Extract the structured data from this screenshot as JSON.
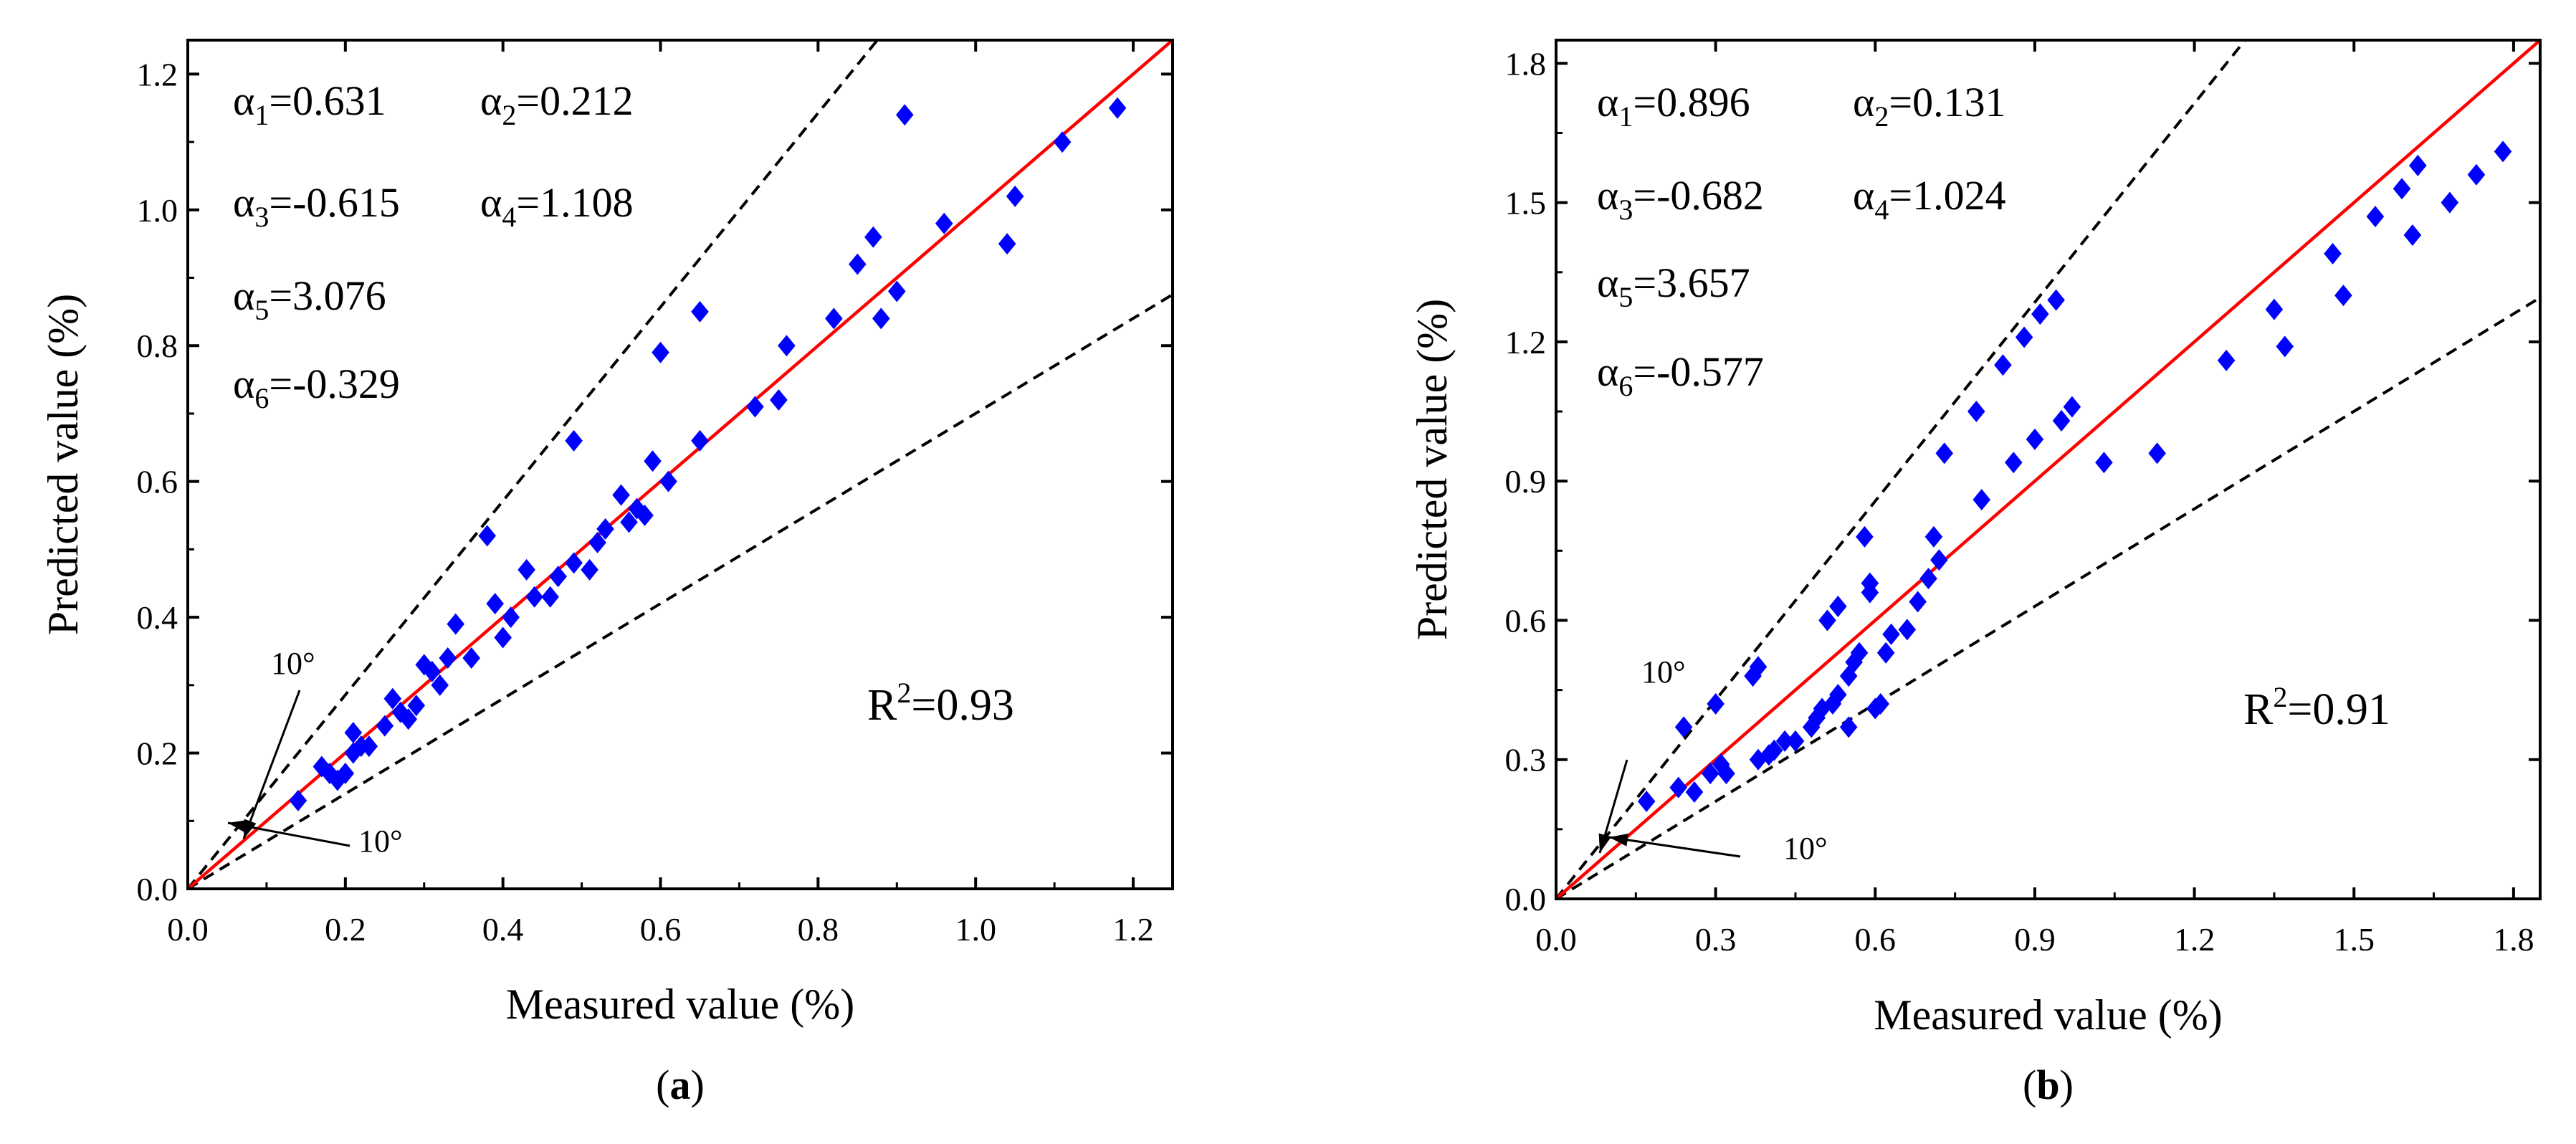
{
  "chart_data": [
    {
      "type": "scatter",
      "panel_label_prefix": "(",
      "panel_label": "a",
      "panel_label_suffix": ")",
      "xlabel": "Measured value (%)",
      "ylabel": "Predicted value (%)",
      "xlim": [
        0,
        1.25
      ],
      "ylim": [
        0,
        1.25
      ],
      "xticks": [
        "0.0",
        "0.2",
        "0.4",
        "0.6",
        "0.8",
        "1.0",
        "1.2"
      ],
      "yticks": [
        "0.0",
        "0.2",
        "0.4",
        "0.6",
        "0.8",
        "1.0",
        "1.2"
      ],
      "xtick_values": [
        0,
        0.2,
        0.4,
        0.6,
        0.8,
        1.0,
        1.2
      ],
      "ytick_values": [
        0,
        0.2,
        0.4,
        0.6,
        0.8,
        1.0,
        1.2
      ],
      "grid": false,
      "marker_color": "#0000ff",
      "identity_line_color": "#ff0000",
      "bound_line_color": "#000000",
      "bound_angle_deg": 10,
      "angle_labels": [
        "10°",
        "10°"
      ],
      "coefficients": [
        {
          "symbol": "α",
          "sub": "1",
          "value": "=0.631"
        },
        {
          "symbol": "α",
          "sub": "2",
          "value": "=0.212"
        },
        {
          "symbol": "α",
          "sub": "3",
          "value": "=-0.615"
        },
        {
          "symbol": "α",
          "sub": "4",
          "value": "=1.108"
        },
        {
          "symbol": "α",
          "sub": "5",
          "value": "=3.076"
        },
        {
          "symbol": "α",
          "sub": "6",
          "value": "=-0.329"
        }
      ],
      "r2": {
        "base": "R",
        "sup": "2",
        "value": "=0.93"
      },
      "points": [
        [
          0.14,
          0.13
        ],
        [
          0.17,
          0.18
        ],
        [
          0.18,
          0.17
        ],
        [
          0.19,
          0.16
        ],
        [
          0.2,
          0.17
        ],
        [
          0.21,
          0.23
        ],
        [
          0.21,
          0.2
        ],
        [
          0.22,
          0.21
        ],
        [
          0.23,
          0.21
        ],
        [
          0.25,
          0.24
        ],
        [
          0.26,
          0.28
        ],
        [
          0.27,
          0.26
        ],
        [
          0.28,
          0.25
        ],
        [
          0.29,
          0.27
        ],
        [
          0.3,
          0.33
        ],
        [
          0.31,
          0.32
        ],
        [
          0.32,
          0.3
        ],
        [
          0.33,
          0.34
        ],
        [
          0.34,
          0.39
        ],
        [
          0.36,
          0.34
        ],
        [
          0.38,
          0.52
        ],
        [
          0.39,
          0.42
        ],
        [
          0.4,
          0.37
        ],
        [
          0.41,
          0.4
        ],
        [
          0.43,
          0.47
        ],
        [
          0.44,
          0.43
        ],
        [
          0.46,
          0.43
        ],
        [
          0.47,
          0.46
        ],
        [
          0.49,
          0.48
        ],
        [
          0.49,
          0.66
        ],
        [
          0.51,
          0.47
        ],
        [
          0.52,
          0.51
        ],
        [
          0.53,
          0.53
        ],
        [
          0.55,
          0.58
        ],
        [
          0.56,
          0.54
        ],
        [
          0.57,
          0.56
        ],
        [
          0.58,
          0.55
        ],
        [
          0.59,
          0.63
        ],
        [
          0.6,
          0.79
        ],
        [
          0.61,
          0.6
        ],
        [
          0.65,
          0.66
        ],
        [
          0.65,
          0.85
        ],
        [
          0.72,
          0.71
        ],
        [
          0.75,
          0.72
        ],
        [
          0.76,
          0.8
        ],
        [
          0.82,
          0.84
        ],
        [
          0.85,
          0.92
        ],
        [
          0.87,
          0.96
        ],
        [
          0.88,
          0.84
        ],
        [
          0.9,
          0.88
        ],
        [
          0.91,
          1.14
        ],
        [
          0.96,
          0.98
        ],
        [
          1.04,
          0.95
        ],
        [
          1.05,
          1.02
        ],
        [
          1.11,
          1.1
        ],
        [
          1.18,
          1.15
        ]
      ]
    },
    {
      "type": "scatter",
      "panel_label_prefix": "(",
      "panel_label": "b",
      "panel_label_suffix": ")",
      "xlabel": "Measured value (%)",
      "ylabel": "Predicted value (%)",
      "xlim": [
        0,
        1.85
      ],
      "ylim": [
        0,
        1.85
      ],
      "xticks": [
        "0.0",
        "0.3",
        "0.6",
        "0.9",
        "1.2",
        "1.5",
        "1.8"
      ],
      "yticks": [
        "0.0",
        "0.3",
        "0.6",
        "0.9",
        "1.2",
        "1.5",
        "1.8"
      ],
      "xtick_values": [
        0,
        0.3,
        0.6,
        0.9,
        1.2,
        1.5,
        1.8
      ],
      "ytick_values": [
        0,
        0.3,
        0.6,
        0.9,
        1.2,
        1.5,
        1.8
      ],
      "grid": false,
      "marker_color": "#0000ff",
      "identity_line_color": "#ff0000",
      "bound_line_color": "#000000",
      "bound_angle_deg": 10,
      "angle_labels": [
        "10°",
        "10°"
      ],
      "coefficients": [
        {
          "symbol": "α",
          "sub": "1",
          "value": "=0.896"
        },
        {
          "symbol": "α",
          "sub": "2",
          "value": "=0.131"
        },
        {
          "symbol": "α",
          "sub": "3",
          "value": "=-0.682"
        },
        {
          "symbol": "α",
          "sub": "4",
          "value": "=1.024"
        },
        {
          "symbol": "α",
          "sub": "5",
          "value": "=3.657"
        },
        {
          "symbol": "α",
          "sub": "6",
          "value": "=-0.577"
        }
      ],
      "r2": {
        "base": "R",
        "sup": "2",
        "value": "=0.91"
      },
      "points": [
        [
          0.17,
          0.21
        ],
        [
          0.23,
          0.24
        ],
        [
          0.24,
          0.37
        ],
        [
          0.26,
          0.23
        ],
        [
          0.29,
          0.27
        ],
        [
          0.3,
          0.42
        ],
        [
          0.31,
          0.29
        ],
        [
          0.32,
          0.27
        ],
        [
          0.37,
          0.48
        ],
        [
          0.38,
          0.3
        ],
        [
          0.38,
          0.5
        ],
        [
          0.4,
          0.31
        ],
        [
          0.41,
          0.32
        ],
        [
          0.43,
          0.34
        ],
        [
          0.45,
          0.34
        ],
        [
          0.48,
          0.37
        ],
        [
          0.49,
          0.39
        ],
        [
          0.5,
          0.41
        ],
        [
          0.51,
          0.6
        ],
        [
          0.52,
          0.42
        ],
        [
          0.53,
          0.63
        ],
        [
          0.53,
          0.44
        ],
        [
          0.55,
          0.37
        ],
        [
          0.55,
          0.48
        ],
        [
          0.56,
          0.51
        ],
        [
          0.57,
          0.53
        ],
        [
          0.58,
          0.78
        ],
        [
          0.59,
          0.66
        ],
        [
          0.59,
          0.68
        ],
        [
          0.6,
          0.41
        ],
        [
          0.61,
          0.42
        ],
        [
          0.62,
          0.53
        ],
        [
          0.63,
          0.57
        ],
        [
          0.66,
          0.58
        ],
        [
          0.68,
          0.64
        ],
        [
          0.7,
          0.69
        ],
        [
          0.71,
          0.78
        ],
        [
          0.72,
          0.73
        ],
        [
          0.73,
          0.96
        ],
        [
          0.79,
          1.05
        ],
        [
          0.8,
          0.86
        ],
        [
          0.84,
          1.15
        ],
        [
          0.86,
          0.94
        ],
        [
          0.88,
          1.21
        ],
        [
          0.9,
          0.99
        ],
        [
          0.91,
          1.26
        ],
        [
          0.94,
          1.29
        ],
        [
          0.95,
          1.03
        ],
        [
          0.97,
          1.06
        ],
        [
          1.03,
          0.94
        ],
        [
          1.13,
          0.96
        ],
        [
          1.26,
          1.16
        ],
        [
          1.35,
          1.27
        ],
        [
          1.37,
          1.19
        ],
        [
          1.46,
          1.39
        ],
        [
          1.48,
          1.3
        ],
        [
          1.54,
          1.47
        ],
        [
          1.59,
          1.53
        ],
        [
          1.61,
          1.43
        ],
        [
          1.62,
          1.58
        ],
        [
          1.68,
          1.5
        ],
        [
          1.73,
          1.56
        ],
        [
          1.78,
          1.61
        ]
      ]
    }
  ]
}
